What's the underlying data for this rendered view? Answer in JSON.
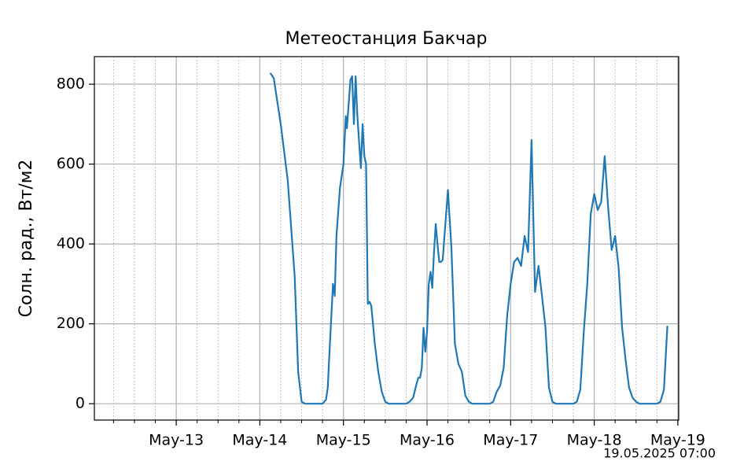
{
  "chart_data": {
    "type": "line",
    "title": "Метеостанция Бакчар",
    "ylabel": "Солн. рад., Вт/м2",
    "footer": "19.05.2025 07:00",
    "color": "#1f77b4",
    "grid": true,
    "x": [
      "2025-05-14 03:00",
      "2025-05-14 04:00",
      "2025-05-14 06:00",
      "2025-05-14 08:00",
      "2025-05-14 10:00",
      "2025-05-14 11:00",
      "2025-05-14 12:00",
      "2025-05-14 13:00",
      "2025-05-14 18:00",
      "2025-05-14 19:00",
      "2025-05-14 19:30",
      "2025-05-14 20:00",
      "2025-05-14 21:00",
      "2025-05-14 21:30",
      "2025-05-14 22:00",
      "2025-05-14 23:00",
      "2025-05-15 00:00",
      "2025-05-15 00:40",
      "2025-05-15 01:00",
      "2025-05-15 02:00",
      "2025-05-15 02:30",
      "2025-05-15 03:00",
      "2025-05-15 03:30",
      "2025-05-15 04:00",
      "2025-05-15 05:00",
      "2025-05-15 05:30",
      "2025-05-15 06:00",
      "2025-05-15 06:30",
      "2025-05-15 07:00",
      "2025-05-15 07:30",
      "2025-05-15 08:00",
      "2025-05-15 09:00",
      "2025-05-15 10:00",
      "2025-05-15 11:00",
      "2025-05-15 12:00",
      "2025-05-15 13:00",
      "2025-05-15 18:00",
      "2025-05-15 19:00",
      "2025-05-15 20:00",
      "2025-05-15 21:00",
      "2025-05-15 21:30",
      "2025-05-15 22:00",
      "2025-05-15 22:30",
      "2025-05-15 23:00",
      "2025-05-15 23:30",
      "2025-05-16 00:00",
      "2025-05-16 00:30",
      "2025-05-16 01:00",
      "2025-05-16 01:30",
      "2025-05-16 02:00",
      "2025-05-16 02:30",
      "2025-05-16 03:00",
      "2025-05-16 03:30",
      "2025-05-16 04:00",
      "2025-05-16 04:30",
      "2025-05-16 05:00",
      "2025-05-16 06:00",
      "2025-05-16 07:00",
      "2025-05-16 08:00",
      "2025-05-16 09:00",
      "2025-05-16 10:00",
      "2025-05-16 11:00",
      "2025-05-16 12:00",
      "2025-05-16 13:00",
      "2025-05-16 18:00",
      "2025-05-16 19:00",
      "2025-05-16 20:00",
      "2025-05-16 21:00",
      "2025-05-16 22:00",
      "2025-05-16 23:00",
      "2025-05-17 00:00",
      "2025-05-17 01:00",
      "2025-05-17 02:00",
      "2025-05-17 03:00",
      "2025-05-17 04:00",
      "2025-05-17 05:00",
      "2025-05-17 06:00",
      "2025-05-17 07:00",
      "2025-05-17 08:00",
      "2025-05-17 09:00",
      "2025-05-17 10:00",
      "2025-05-17 11:00",
      "2025-05-17 12:00",
      "2025-05-17 13:00",
      "2025-05-17 18:00",
      "2025-05-17 19:00",
      "2025-05-17 20:00",
      "2025-05-17 21:00",
      "2025-05-17 22:00",
      "2025-05-17 23:00",
      "2025-05-18 00:00",
      "2025-05-18 01:00",
      "2025-05-18 02:00",
      "2025-05-18 03:00",
      "2025-05-18 04:00",
      "2025-05-18 05:00",
      "2025-05-18 06:00",
      "2025-05-18 07:00",
      "2025-05-18 08:00",
      "2025-05-18 09:00",
      "2025-05-18 10:00",
      "2025-05-18 11:00",
      "2025-05-18 12:00",
      "2025-05-18 13:00",
      "2025-05-18 18:00",
      "2025-05-18 19:00",
      "2025-05-18 20:00",
      "2025-05-18 21:00"
    ],
    "values": [
      828,
      815,
      700,
      560,
      320,
      80,
      5,
      0,
      0,
      10,
      40,
      130,
      300,
      270,
      420,
      540,
      600,
      720,
      690,
      810,
      820,
      700,
      820,
      720,
      590,
      700,
      620,
      600,
      250,
      255,
      245,
      150,
      80,
      30,
      5,
      0,
      0,
      5,
      15,
      50,
      65,
      65,
      90,
      190,
      130,
      180,
      300,
      330,
      290,
      380,
      450,
      400,
      355,
      355,
      360,
      420,
      535,
      390,
      150,
      100,
      80,
      20,
      5,
      0,
      0,
      5,
      30,
      45,
      90,
      220,
      300,
      355,
      365,
      345,
      420,
      380,
      660,
      280,
      345,
      270,
      190,
      40,
      5,
      0,
      0,
      5,
      35,
      180,
      300,
      475,
      525,
      485,
      505,
      620,
      490,
      385,
      420,
      340,
      190,
      110,
      40,
      15,
      5,
      0,
      0,
      5,
      35,
      195
    ],
    "xlim": [
      "2025-05-12 00:30",
      "2025-05-19 00:15"
    ],
    "xticks": [
      {
        "value": "2025-05-13 00:00",
        "label": "May-13"
      },
      {
        "value": "2025-05-14 00:00",
        "label": "May-14"
      },
      {
        "value": "2025-05-15 00:00",
        "label": "May-15"
      },
      {
        "value": "2025-05-16 00:00",
        "label": "May-16"
      },
      {
        "value": "2025-05-17 00:00",
        "label": "May-17"
      },
      {
        "value": "2025-05-18 00:00",
        "label": "May-18"
      },
      {
        "value": "2025-05-19 00:00",
        "label": "May-19"
      }
    ],
    "xminorticks": [
      "2025-05-12 06:00",
      "2025-05-12 12:00",
      "2025-05-12 18:00",
      "2025-05-13 06:00",
      "2025-05-13 12:00",
      "2025-05-13 18:00",
      "2025-05-14 06:00",
      "2025-05-14 12:00",
      "2025-05-14 18:00",
      "2025-05-15 06:00",
      "2025-05-15 12:00",
      "2025-05-15 18:00",
      "2025-05-16 06:00",
      "2025-05-16 12:00",
      "2025-05-16 18:00",
      "2025-05-17 06:00",
      "2025-05-17 12:00",
      "2025-05-17 18:00",
      "2025-05-18 06:00",
      "2025-05-18 12:00",
      "2025-05-18 18:00"
    ],
    "ylim": [
      -41,
      869
    ],
    "yticks": [
      0,
      200,
      400,
      600,
      800
    ]
  }
}
